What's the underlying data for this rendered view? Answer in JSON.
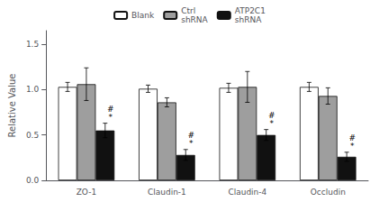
{
  "chart_data": {
    "type": "bar",
    "categories": [
      "ZO-1",
      "Claudin-1",
      "Claudin-4",
      "Occludin"
    ],
    "series": [
      {
        "name": "Blank",
        "color": "#ffffff",
        "values": [
          1.03,
          1.01,
          1.02,
          1.03
        ],
        "errors": [
          0.05,
          0.04,
          0.05,
          0.05
        ]
      },
      {
        "name": "Ctrl\nshRNA",
        "color": "#9e9e9e",
        "values": [
          1.06,
          0.86,
          1.03,
          0.93
        ],
        "errors": [
          0.18,
          0.05,
          0.17,
          0.09
        ]
      },
      {
        "name": "ATP2C1\nshRNA",
        "color": "#111111",
        "values": [
          0.55,
          0.28,
          0.5,
          0.26
        ],
        "errors": [
          0.08,
          0.06,
          0.06,
          0.05
        ]
      }
    ],
    "ylabel": "Relative Value",
    "ylim": [
      0.0,
      1.65
    ],
    "yticks": [
      {
        "value": 0.0,
        "label": "0.0"
      },
      0.5,
      {
        "value": 1.0,
        "label": "1.0"
      },
      1.5
    ],
    "grid": false,
    "legend": "upper center",
    "annotations": [
      {
        "text": "*",
        "series": "ATP2C1\nshRNA",
        "category": "ZO-1"
      },
      {
        "text": "#",
        "series": "ATP2C1\nshRNA",
        "category": "ZO-1"
      },
      {
        "text": "*",
        "series": "ATP2C1\nshRNA",
        "category": "Claudin-1"
      },
      {
        "text": "#",
        "series": "ATP2C1\nshRNA",
        "category": "Claudin-1"
      },
      {
        "text": "*",
        "series": "ATP2C1\nshRNA",
        "category": "Claudin-4"
      },
      {
        "text": "#",
        "series": "ATP2C1\nshRNA",
        "category": "Claudin-4"
      },
      {
        "text": "*",
        "series": "ATP2C1\nshRNA",
        "category": "Occludin"
      },
      {
        "text": "#",
        "series": "ATP2C1\nshRNA",
        "category": "Occludin"
      }
    ]
  }
}
